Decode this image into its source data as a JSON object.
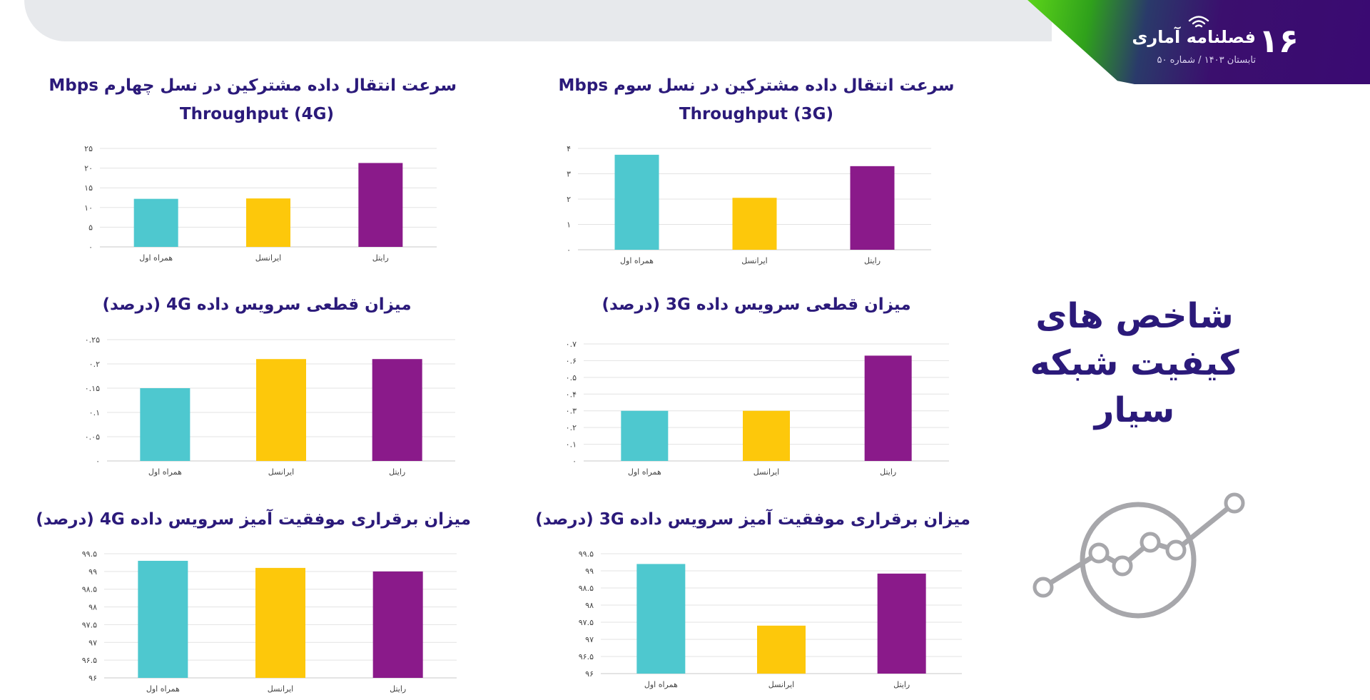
{
  "header": {
    "page_number": "۱۶",
    "brand_name": "فصلنامه آماری",
    "issue_text": "تابستان ۱۴۰۳  /  شماره ۵۰"
  },
  "section_title": {
    "line1": "شاخص های",
    "line2": "کیفیت شبکه",
    "line3": "سیار"
  },
  "colors": {
    "hamrah": "#4ec8cf",
    "irancell": "#fdc80b",
    "rightel": "#8a1a8a",
    "title": "#2b1a7a"
  },
  "chart_data": [
    {
      "id": "throughput-3g",
      "type": "bar",
      "title_line1": "سرعت انتقال داده مشترکین در نسل سوم Mbps",
      "title_line2": "Throughput (3G)",
      "categories": [
        "همراه اول",
        "ایرانسل",
        "رایتل"
      ],
      "values": [
        3.75,
        2.05,
        3.3
      ],
      "ylim": [
        0,
        4
      ],
      "yticks": [
        "۰",
        "۱",
        "۲",
        "۳",
        "۴"
      ],
      "tick_values": [
        0,
        1,
        2,
        3,
        4
      ]
    },
    {
      "id": "throughput-4g",
      "type": "bar",
      "title_line1": "سرعت انتقال داده مشترکین در نسل چهارم Mbps",
      "title_line2": "Throughput (4G)",
      "categories": [
        "همراه اول",
        "ایرانسل",
        "رایتل"
      ],
      "values": [
        12.2,
        12.3,
        21.3
      ],
      "ylim": [
        0,
        25
      ],
      "yticks": [
        "۰",
        "۵",
        "۱۰",
        "۱۵",
        "۲۰",
        "۲۵"
      ],
      "tick_values": [
        0,
        5,
        10,
        15,
        20,
        25
      ]
    },
    {
      "id": "drop-3g",
      "type": "bar",
      "title_line1": "میزان قطعی سرویس داده 3G (درصد)",
      "title_line2": "",
      "categories": [
        "همراه اول",
        "ایرانسل",
        "رایتل"
      ],
      "values": [
        0.3,
        0.3,
        0.63
      ],
      "ylim": [
        0,
        0.7
      ],
      "yticks": [
        "۰",
        "۰.۱",
        "۰.۲",
        "۰.۳",
        "۰.۴",
        "۰.۵",
        "۰.۶",
        "۰.۷"
      ],
      "tick_values": [
        0,
        0.1,
        0.2,
        0.3,
        0.4,
        0.5,
        0.6,
        0.7
      ]
    },
    {
      "id": "drop-4g",
      "type": "bar",
      "title_line1": "میزان قطعی سرویس داده 4G (درصد)",
      "title_line2": "",
      "categories": [
        "همراه اول",
        "ایرانسل",
        "رایتل"
      ],
      "values": [
        0.15,
        0.21,
        0.21
      ],
      "ylim": [
        0,
        0.25
      ],
      "yticks": [
        "۰",
        "۰.۰۵",
        "۰.۱",
        "۰.۱۵",
        "۰.۲",
        "۰.۲۵"
      ],
      "tick_values": [
        0,
        0.05,
        0.1,
        0.15,
        0.2,
        0.25
      ]
    },
    {
      "id": "success-3g",
      "type": "bar",
      "title_line1": "میزان برقراری موفقیت آمیز سرویس داده 3G (درصد)",
      "title_line2": "",
      "categories": [
        "همراه اول",
        "ایرانسل",
        "رایتل"
      ],
      "values": [
        99.2,
        97.4,
        98.92
      ],
      "ylim": [
        96,
        99.5
      ],
      "yticks": [
        "۹۶",
        "۹۶.۵",
        "۹۷",
        "۹۷.۵",
        "۹۸",
        "۹۸.۵",
        "۹۹",
        "۹۹.۵"
      ],
      "tick_values": [
        96,
        96.5,
        97,
        97.5,
        98,
        98.5,
        99,
        99.5
      ]
    },
    {
      "id": "success-4g",
      "type": "bar",
      "title_line1": "میزان برقراری موفقیت آمیز سرویس داده 4G (درصد)",
      "title_line2": "",
      "categories": [
        "همراه اول",
        "ایرانسل",
        "رایتل"
      ],
      "values": [
        99.3,
        99.1,
        99.0
      ],
      "ylim": [
        96,
        99.5
      ],
      "yticks": [
        "۹۶",
        "۹۶.۵",
        "۹۷",
        "۹۷.۵",
        "۹۸",
        "۹۸.۵",
        "۹۹",
        "۹۹.۵"
      ],
      "tick_values": [
        96,
        96.5,
        97,
        97.5,
        98,
        98.5,
        99,
        99.5
      ]
    }
  ]
}
